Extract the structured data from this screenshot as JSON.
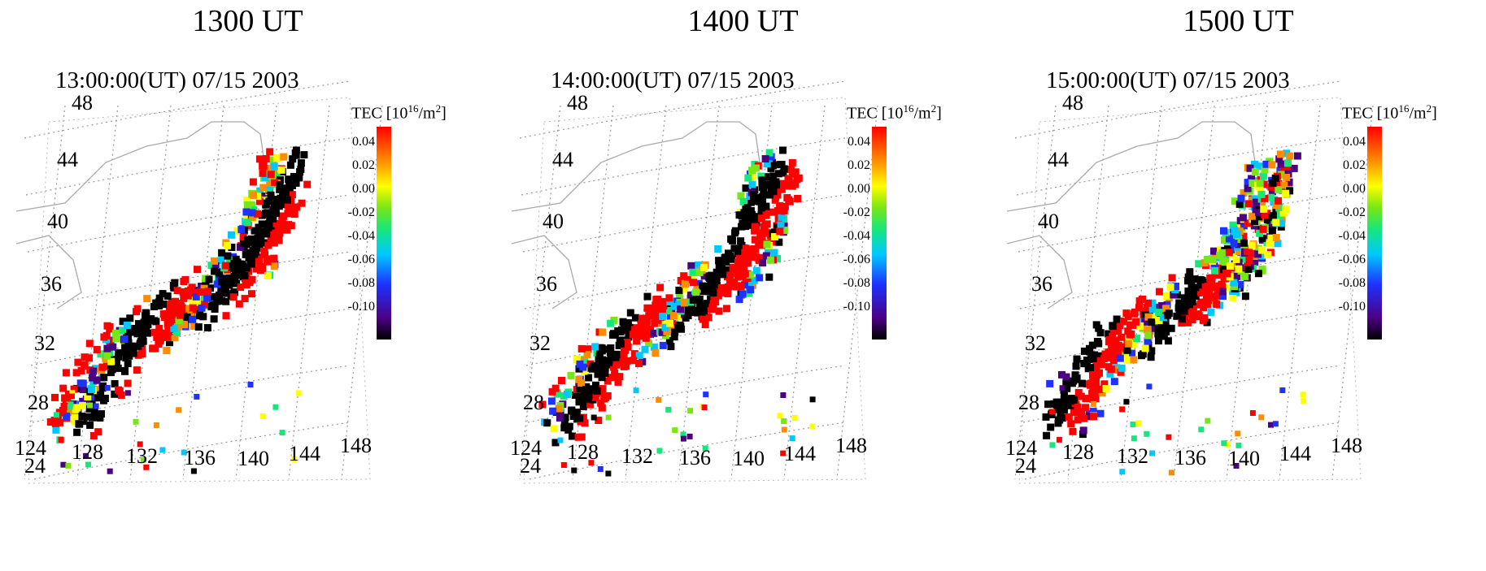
{
  "panels": [
    {
      "header": "1300 UT",
      "subtitle": "13:00:00(UT)  07/15 2003",
      "colorbar_title_prefix": "TEC [10",
      "colorbar_title_exp": "16",
      "colorbar_title_suffix": "/m",
      "colorbar_title_exp2": "2",
      "colorbar_title_close": "]",
      "colorbar_ticks": [
        "0.04",
        "0.02",
        "0.00",
        "-0.02",
        "-0.04",
        "-0.06",
        "-0.08",
        "-0.10"
      ],
      "lat_labels": [
        "48",
        "44",
        "40",
        "36",
        "32",
        "28",
        "24"
      ],
      "lon_labels": [
        "124",
        "128",
        "132",
        "136",
        "140",
        "144",
        "148"
      ]
    },
    {
      "header": "1400 UT",
      "subtitle": "14:00:00(UT)  07/15 2003",
      "colorbar_title_prefix": "TEC [10",
      "colorbar_title_exp": "16",
      "colorbar_title_suffix": "/m",
      "colorbar_title_exp2": "2",
      "colorbar_title_close": "]",
      "colorbar_ticks": [
        "0.04",
        "0.02",
        "0.00",
        "-0.02",
        "-0.04",
        "-0.06",
        "-0.08",
        "-0.10"
      ],
      "lat_labels": [
        "48",
        "44",
        "40",
        "36",
        "32",
        "28",
        "24"
      ],
      "lon_labels": [
        "124",
        "128",
        "132",
        "136",
        "140",
        "144",
        "148"
      ]
    },
    {
      "header": "1500 UT",
      "subtitle": "15:00:00(UT)  07/15 2003",
      "colorbar_title_prefix": "TEC [10",
      "colorbar_title_exp": "16",
      "colorbar_title_suffix": "/m",
      "colorbar_title_exp2": "2",
      "colorbar_title_close": "]",
      "colorbar_ticks": [
        "0.04",
        "0.02",
        "0.00",
        "-0.02",
        "-0.04",
        "-0.06",
        "-0.08",
        "-0.10"
      ],
      "lat_labels": [
        "48",
        "44",
        "40",
        "36",
        "32",
        "28",
        "24"
      ],
      "lon_labels": [
        "124",
        "128",
        "132",
        "136",
        "140",
        "144",
        "148"
      ]
    }
  ],
  "colorbar_colors": [
    "#000000",
    "#4b0082",
    "#1e32ff",
    "#00c8ff",
    "#19e67a",
    "#78e614",
    "#ffff00",
    "#ff8c00",
    "#ff0000"
  ]
}
